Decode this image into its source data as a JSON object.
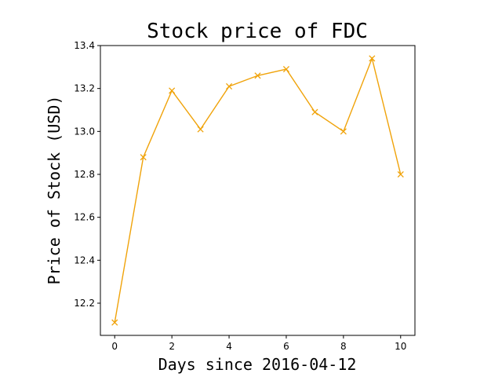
{
  "chart_data": {
    "type": "line",
    "title": "Stock price of FDC",
    "xlabel": "Days since 2016-04-12",
    "ylabel": "Price of Stock (USD)",
    "xlim": [
      -0.5,
      10.5
    ],
    "ylim": [
      12.05,
      13.4
    ],
    "x_ticks": [
      0,
      2,
      4,
      6,
      8,
      10
    ],
    "y_ticks": [
      12.2,
      12.4,
      12.6,
      12.8,
      13.0,
      13.2,
      13.4
    ],
    "x_tick_labels": [
      "0",
      "2",
      "4",
      "6",
      "8",
      "10"
    ],
    "y_tick_labels": [
      "12.2",
      "12.4",
      "12.6",
      "12.8",
      "13.0",
      "13.2",
      "13.4"
    ],
    "grid": false,
    "series": [
      {
        "color": "#f0a30a",
        "marker": "x",
        "x": [
          0,
          1,
          2,
          3,
          4,
          5,
          6,
          7,
          8,
          9,
          10
        ],
        "values": [
          12.11,
          12.88,
          13.19,
          13.01,
          13.21,
          13.26,
          13.29,
          13.09,
          13.0,
          13.34,
          12.8
        ]
      }
    ]
  }
}
